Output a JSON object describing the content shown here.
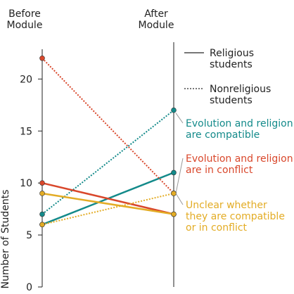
{
  "chart_data": {
    "type": "slope",
    "categories": [
      "Before\nModule",
      "After\nModule"
    ],
    "y_label": "Number of Students",
    "ylim": [
      0,
      23
    ],
    "yticks": [
      0,
      5,
      10,
      15,
      20
    ],
    "legend": [
      "Religious\nstudents",
      "Nonreligious\nstudents"
    ],
    "line_styles": [
      "solid",
      "dotted"
    ],
    "groups": [
      {
        "label": "Evolution and religion\nare compatible",
        "color": "#138a8a",
        "religious": [
          6,
          11
        ],
        "nonreligious": [
          7,
          17
        ]
      },
      {
        "label": "Evolution and religion\nare in conflict",
        "color": "#d9472b",
        "religious": [
          10,
          7
        ],
        "nonreligious": [
          22,
          9
        ]
      },
      {
        "label": "Unclear whether\nthey are compatible\nor in conflict",
        "color": "#e3ac25",
        "religious": [
          9,
          7
        ],
        "nonreligious": [
          6,
          9
        ]
      }
    ]
  }
}
